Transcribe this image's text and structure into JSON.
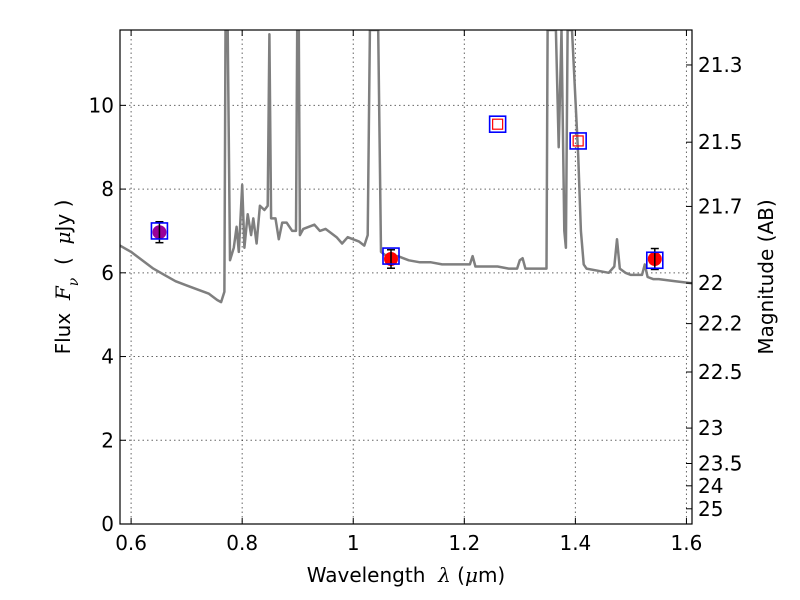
{
  "chart_data": {
    "type": "line",
    "xlabel": {
      "prefix": "Wavelength  ",
      "math_symbol": "λ",
      "suffix": " (",
      "mu": "μ",
      "unit": "m)"
    },
    "ylabel": {
      "prefix": "Flux  ",
      "math_symbol": "F",
      "subscript": "ν",
      "open": "  (  ",
      "mu": "μ",
      "unit": "Jy  )"
    },
    "ylabel_right": "Magnitude (AB)",
    "xlim": [
      0.58,
      1.61
    ],
    "ylim": [
      0,
      11.8
    ],
    "grid": true,
    "x_ticks": [
      {
        "value": 0.6,
        "label": "0.6"
      },
      {
        "value": 0.8,
        "label": "0.8"
      },
      {
        "value": 1.0,
        "label": "1"
      },
      {
        "value": 1.2,
        "label": "1.2"
      },
      {
        "value": 1.4,
        "label": "1.4"
      },
      {
        "value": 1.6,
        "label": "1.6"
      }
    ],
    "y_ticks": [
      {
        "value": 0,
        "label": "0"
      },
      {
        "value": 2,
        "label": "2"
      },
      {
        "value": 4,
        "label": "4"
      },
      {
        "value": 6,
        "label": "6"
      },
      {
        "value": 8,
        "label": "8"
      },
      {
        "value": 10,
        "label": "10"
      }
    ],
    "right_ticks": [
      {
        "value": 21.3,
        "label": "21.3"
      },
      {
        "value": 21.5,
        "label": "21.5"
      },
      {
        "value": 21.7,
        "label": "21.7"
      },
      {
        "value": 22,
        "label": "22"
      },
      {
        "value": 22.2,
        "label": "22.2"
      },
      {
        "value": 22.5,
        "label": "22.5"
      },
      {
        "value": 23,
        "label": "23"
      },
      {
        "value": 23.5,
        "label": "23.5"
      },
      {
        "value": 24,
        "label": "24"
      },
      {
        "value": 25,
        "label": "25"
      }
    ],
    "model_spectrum": {
      "color": "#7f7f7f",
      "points": [
        [
          0.58,
          6.65
        ],
        [
          0.6,
          6.5
        ],
        [
          0.62,
          6.3
        ],
        [
          0.64,
          6.1
        ],
        [
          0.66,
          5.95
        ],
        [
          0.68,
          5.8
        ],
        [
          0.7,
          5.7
        ],
        [
          0.72,
          5.6
        ],
        [
          0.74,
          5.5
        ],
        [
          0.755,
          5.35
        ],
        [
          0.762,
          5.3
        ],
        [
          0.768,
          5.55
        ],
        [
          0.77,
          11.8
        ],
        [
          0.774,
          11.8
        ],
        [
          0.778,
          6.3
        ],
        [
          0.785,
          6.6
        ],
        [
          0.79,
          7.1
        ],
        [
          0.794,
          6.5
        ],
        [
          0.8,
          8.1
        ],
        [
          0.804,
          6.6
        ],
        [
          0.81,
          7.4
        ],
        [
          0.816,
          6.9
        ],
        [
          0.82,
          7.3
        ],
        [
          0.826,
          6.7
        ],
        [
          0.832,
          7.6
        ],
        [
          0.84,
          7.5
        ],
        [
          0.846,
          7.6
        ],
        [
          0.849,
          11.7
        ],
        [
          0.852,
          7.3
        ],
        [
          0.86,
          7.3
        ],
        [
          0.866,
          6.8
        ],
        [
          0.872,
          7.2
        ],
        [
          0.88,
          7.2
        ],
        [
          0.89,
          7.0
        ],
        [
          0.897,
          7.0
        ],
        [
          0.899,
          11.8
        ],
        [
          0.902,
          11.8
        ],
        [
          0.904,
          6.9
        ],
        [
          0.91,
          7.05
        ],
        [
          0.92,
          7.1
        ],
        [
          0.93,
          7.15
        ],
        [
          0.94,
          7.0
        ],
        [
          0.95,
          7.05
        ],
        [
          0.96,
          6.95
        ],
        [
          0.97,
          6.85
        ],
        [
          0.98,
          6.7
        ],
        [
          0.99,
          6.85
        ],
        [
          1.0,
          6.8
        ],
        [
          1.01,
          6.75
        ],
        [
          1.02,
          6.65
        ],
        [
          1.026,
          6.9
        ],
        [
          1.03,
          11.8
        ],
        [
          1.045,
          11.8
        ],
        [
          1.05,
          6.5
        ],
        [
          1.06,
          6.4
        ],
        [
          1.07,
          6.4
        ],
        [
          1.08,
          6.4
        ],
        [
          1.09,
          6.35
        ],
        [
          1.1,
          6.3
        ],
        [
          1.12,
          6.25
        ],
        [
          1.14,
          6.25
        ],
        [
          1.16,
          6.2
        ],
        [
          1.18,
          6.2
        ],
        [
          1.19,
          6.2
        ],
        [
          1.21,
          6.2
        ],
        [
          1.215,
          6.4
        ],
        [
          1.22,
          6.15
        ],
        [
          1.24,
          6.15
        ],
        [
          1.26,
          6.15
        ],
        [
          1.28,
          6.1
        ],
        [
          1.295,
          6.1
        ],
        [
          1.3,
          6.3
        ],
        [
          1.305,
          6.35
        ],
        [
          1.31,
          6.1
        ],
        [
          1.33,
          6.1
        ],
        [
          1.348,
          6.1
        ],
        [
          1.35,
          11.8
        ],
        [
          1.365,
          11.8
        ],
        [
          1.37,
          9.0
        ],
        [
          1.375,
          11.8
        ],
        [
          1.38,
          7.0
        ],
        [
          1.383,
          6.6
        ],
        [
          1.386,
          11.8
        ],
        [
          1.394,
          11.8
        ],
        [
          1.405,
          8.8
        ],
        [
          1.41,
          7.0
        ],
        [
          1.415,
          6.2
        ],
        [
          1.42,
          6.1
        ],
        [
          1.44,
          6.05
        ],
        [
          1.46,
          6.0
        ],
        [
          1.47,
          6.15
        ],
        [
          1.475,
          6.8
        ],
        [
          1.48,
          6.1
        ],
        [
          1.49,
          6.0
        ],
        [
          1.5,
          5.95
        ],
        [
          1.51,
          5.95
        ],
        [
          1.52,
          5.95
        ],
        [
          1.525,
          6.2
        ],
        [
          1.53,
          5.9
        ],
        [
          1.54,
          5.85
        ],
        [
          1.55,
          5.85
        ],
        [
          1.58,
          5.8
        ],
        [
          1.61,
          5.75
        ]
      ]
    },
    "observed_points": [
      {
        "x": 0.651,
        "y": 6.97,
        "err": 0.25,
        "color": "#990099"
      },
      {
        "x": 1.068,
        "y": 6.33,
        "err": 0.22,
        "color": "#ff0000"
      },
      {
        "x": 1.543,
        "y": 6.33,
        "err": 0.25,
        "color": "#ff0000"
      }
    ],
    "model_photometry": {
      "marker_edge": "#0000ff",
      "inner_edge": "#ff0000",
      "points": [
        {
          "x": 0.651,
          "y": 7.0,
          "inner": false
        },
        {
          "x": 1.068,
          "y": 6.4,
          "inner": false
        },
        {
          "x": 1.26,
          "y": 9.55,
          "inner": true
        },
        {
          "x": 1.405,
          "y": 9.15,
          "inner": true
        },
        {
          "x": 1.543,
          "y": 6.3,
          "inner": false
        }
      ]
    }
  }
}
